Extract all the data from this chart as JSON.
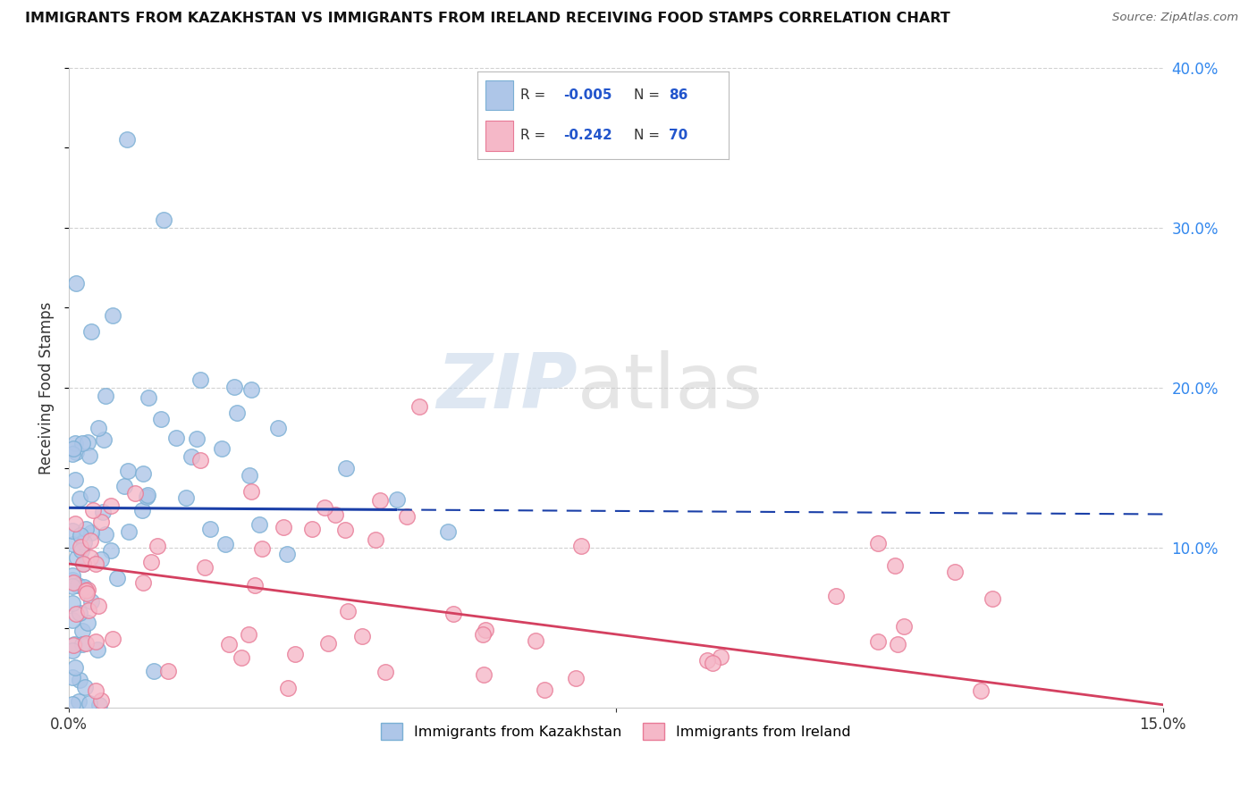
{
  "title": "IMMIGRANTS FROM KAZAKHSTAN VS IMMIGRANTS FROM IRELAND RECEIVING FOOD STAMPS CORRELATION CHART",
  "source": "Source: ZipAtlas.com",
  "ylabel": "Receiving Food Stamps",
  "x_min": 0.0,
  "x_max": 0.15,
  "y_min": 0.0,
  "y_max": 0.4,
  "y_ticks": [
    0.1,
    0.2,
    0.3,
    0.4
  ],
  "y_tick_labels": [
    "10.0%",
    "20.0%",
    "30.0%",
    "40.0%"
  ],
  "x_ticks": [
    0.0,
    0.15
  ],
  "x_tick_labels": [
    "0.0%",
    "15.0%"
  ],
  "legend_R1": "-0.005",
  "legend_N1": "86",
  "legend_R2": "-0.242",
  "legend_N2": "70",
  "kazakhstan_color": "#aec6e8",
  "ireland_color": "#f5b8c8",
  "kazakhstan_edge": "#7aafd4",
  "ireland_edge": "#e87a96",
  "trend_blue": "#1a3fa8",
  "trend_pink": "#d44060",
  "watermark_zip": "ZIP",
  "watermark_atlas": "atlas",
  "background_color": "#ffffff",
  "blue_trend_solid_end": 0.045,
  "kaz_trend_y_start": 0.125,
  "kaz_trend_y_end": 0.121,
  "ire_trend_y_start": 0.09,
  "ire_trend_y_end": 0.002
}
